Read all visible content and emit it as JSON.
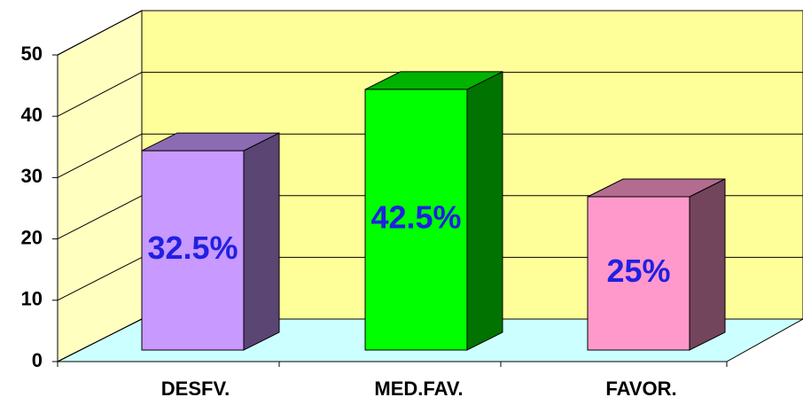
{
  "chart_data": {
    "type": "bar3d",
    "categories": [
      "DESFV.",
      "MED.FAV.",
      "FAVOR."
    ],
    "values": [
      32.5,
      42.5,
      25
    ],
    "value_labels": [
      "32.5%",
      "42.5%",
      "25%"
    ],
    "colors": [
      "#c899ff",
      "#00ff00",
      "#ff99cc"
    ],
    "label_color": "#2020e0",
    "ylim": [
      0,
      50
    ],
    "yticks": [
      0,
      10,
      20,
      30,
      40,
      50
    ],
    "grid": true
  }
}
